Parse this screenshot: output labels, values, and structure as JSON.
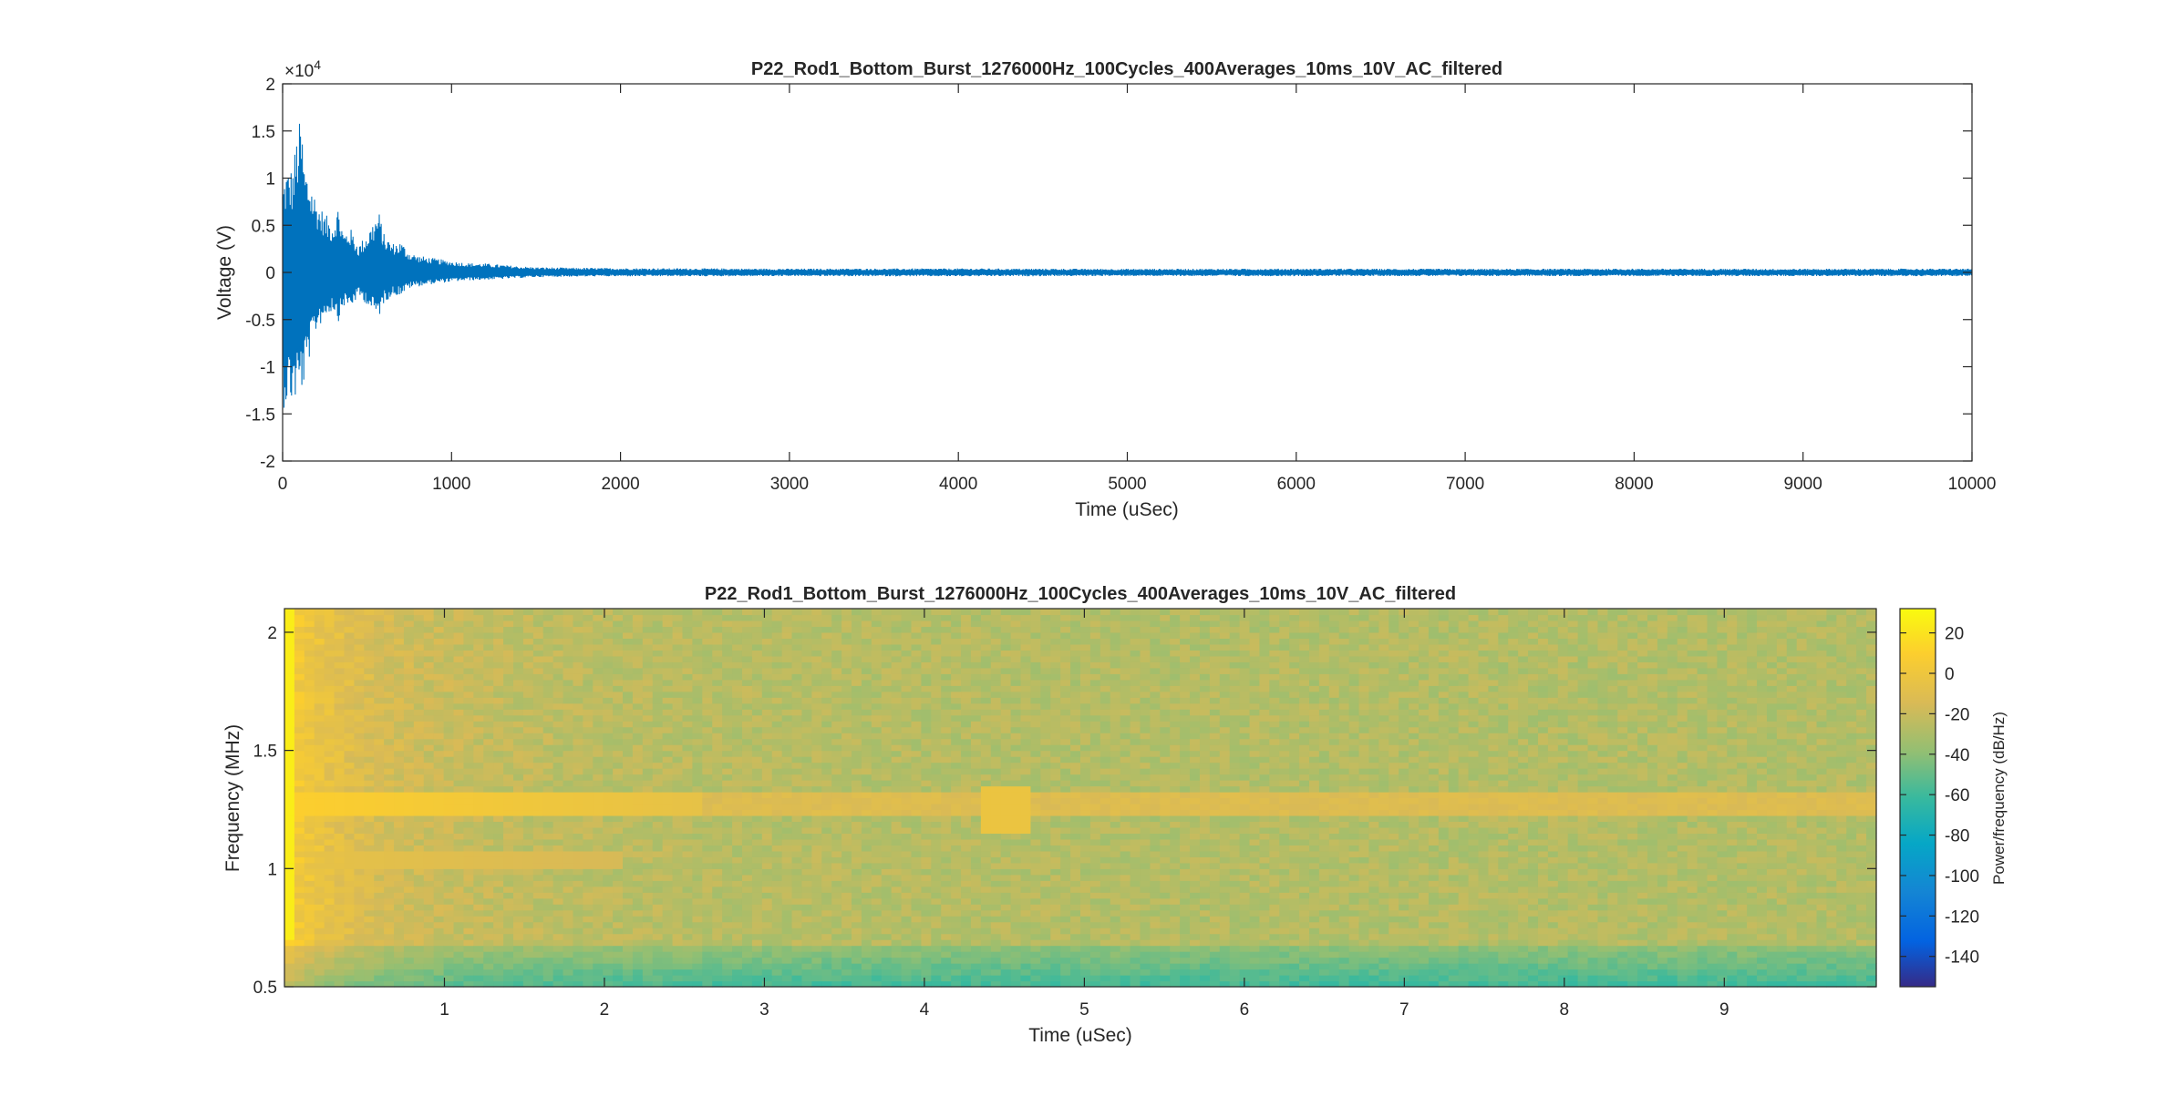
{
  "chart_data": [
    {
      "type": "line",
      "title": "P22_Rod1_Bottom_Burst_1276000Hz_100Cycles_400Averages_10ms_10V_AC_filtered",
      "xlabel": "Time (uSec)",
      "ylabel": "Voltage (V)",
      "xlim": [
        0,
        10000
      ],
      "ylim": [
        -20000,
        20000
      ],
      "y_exponent_label": "×10",
      "y_exponent_power": "4",
      "xticks": [
        0,
        1000,
        2000,
        3000,
        4000,
        5000,
        6000,
        7000,
        8000,
        9000,
        10000
      ],
      "xtick_labels": [
        "0",
        "1000",
        "2000",
        "3000",
        "4000",
        "5000",
        "6000",
        "7000",
        "8000",
        "9000",
        "10000"
      ],
      "yticks": [
        -20000,
        -15000,
        -10000,
        -5000,
        0,
        5000,
        10000,
        15000,
        20000
      ],
      "ytick_labels": [
        "-2",
        "-1.5",
        "-1",
        "-0.5",
        "0",
        "0.5",
        "1",
        "1.5",
        "2"
      ],
      "series": [
        {
          "name": "signal envelope",
          "color": "#0072BD",
          "time": [
            0,
            20,
            60,
            90,
            110,
            130,
            160,
            200,
            250,
            300,
            330,
            360,
            400,
            450,
            500,
            540,
            570,
            600,
            650,
            700,
            750,
            800,
            900,
            1000,
            1100,
            1200,
            1300,
            1400,
            1500,
            1700,
            2000,
            3000,
            4000,
            5000,
            6000,
            7000,
            8000,
            9000,
            10000
          ],
          "upper": [
            9500,
            11000,
            11200,
            15500,
            16400,
            11500,
            10200,
            7800,
            6200,
            5400,
            7200,
            4200,
            4800,
            2900,
            4200,
            5600,
            6500,
            4100,
            3100,
            3300,
            2200,
            1800,
            1500,
            1200,
            1000,
            950,
            800,
            650,
            550,
            500,
            450,
            400,
            420,
            380,
            400,
            380,
            400,
            390,
            400
          ],
          "lower": [
            -14500,
            -14200,
            -14000,
            -13500,
            -12800,
            -12000,
            -9000,
            -6200,
            -4800,
            -4000,
            -5200,
            -3600,
            -3800,
            -2600,
            -3400,
            -4500,
            -4800,
            -3200,
            -2500,
            -2400,
            -1700,
            -1500,
            -1200,
            -1000,
            -850,
            -800,
            -700,
            -600,
            -500,
            -450,
            -420,
            -400,
            -420,
            -380,
            -400,
            -380,
            -400,
            -390,
            -400
          ]
        }
      ]
    },
    {
      "type": "heatmap",
      "title": "P22_Rod1_Bottom_Burst_1276000Hz_100Cycles_400Averages_10ms_10V_AC_filtered",
      "xlabel": "Time (uSec)",
      "ylabel": "Frequency (MHz)",
      "xlim": [
        0,
        9.95
      ],
      "ylim": [
        0.5,
        2.1
      ],
      "xticks": [
        1,
        2,
        3,
        4,
        5,
        6,
        7,
        8,
        9
      ],
      "xtick_labels": [
        "1",
        "2",
        "3",
        "4",
        "5",
        "6",
        "7",
        "8",
        "9"
      ],
      "yticks": [
        0.5,
        1,
        1.5,
        2
      ],
      "ytick_labels": [
        "0.5",
        "1",
        "1.5",
        "2"
      ],
      "colorbar": {
        "label": "Power/frequency (dB/Hz)",
        "range": [
          -155,
          32
        ],
        "ticks": [
          20,
          0,
          -20,
          -40,
          -60,
          -80,
          -100,
          -120,
          -140
        ],
        "tick_labels": [
          "20",
          "0",
          "-20",
          "-40",
          "-60",
          "-80",
          "-100",
          "-120",
          "-140"
        ],
        "colormap": "parula"
      },
      "features": [
        {
          "name": "carrier line",
          "frequency_MHz": 1.28,
          "level_dB": 10,
          "strong_until_uSec": 2.6
        },
        {
          "name": "secondary line",
          "frequency_MHz": 1.04,
          "level_dB": -5,
          "strong_until_uSec": 2.1
        },
        {
          "name": "burst patch",
          "time_uSec": 4.5,
          "frequency_MHz": 1.25,
          "level_dB": -2
        }
      ],
      "background_dB": -28,
      "low_frequency_floor_dB": -60
    }
  ]
}
